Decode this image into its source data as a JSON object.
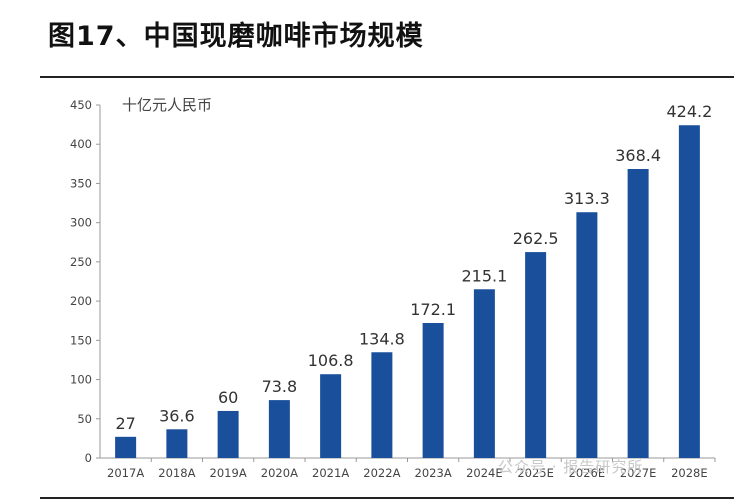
{
  "title": "图17、中国现磨咖啡市场规模",
  "watermark": "公众号 · 报告研究所",
  "chart_data": {
    "type": "bar",
    "unit": "十亿元人民币",
    "categories": [
      "2017A",
      "2018A",
      "2019A",
      "2020A",
      "2021A",
      "2022A",
      "2023A",
      "2024E",
      "2025E",
      "2026E",
      "2027E",
      "2028E"
    ],
    "values": [
      27,
      36.6,
      60,
      73.8,
      106.8,
      134.8,
      172.1,
      215.1,
      262.5,
      313.3,
      368.4,
      424.2
    ],
    "value_labels": [
      "27",
      "36.6",
      "60",
      "73.8",
      "106.8",
      "134.8",
      "172.1",
      "215.1",
      "262.5",
      "313.3",
      "368.4",
      "424.2"
    ],
    "ylim": [
      0,
      450
    ],
    "yticks": [
      0,
      50,
      100,
      150,
      200,
      250,
      300,
      350,
      400,
      450
    ],
    "bar_color": "#1a4f9c",
    "axis_color": "#999999",
    "grid": false,
    "legend": "none"
  }
}
